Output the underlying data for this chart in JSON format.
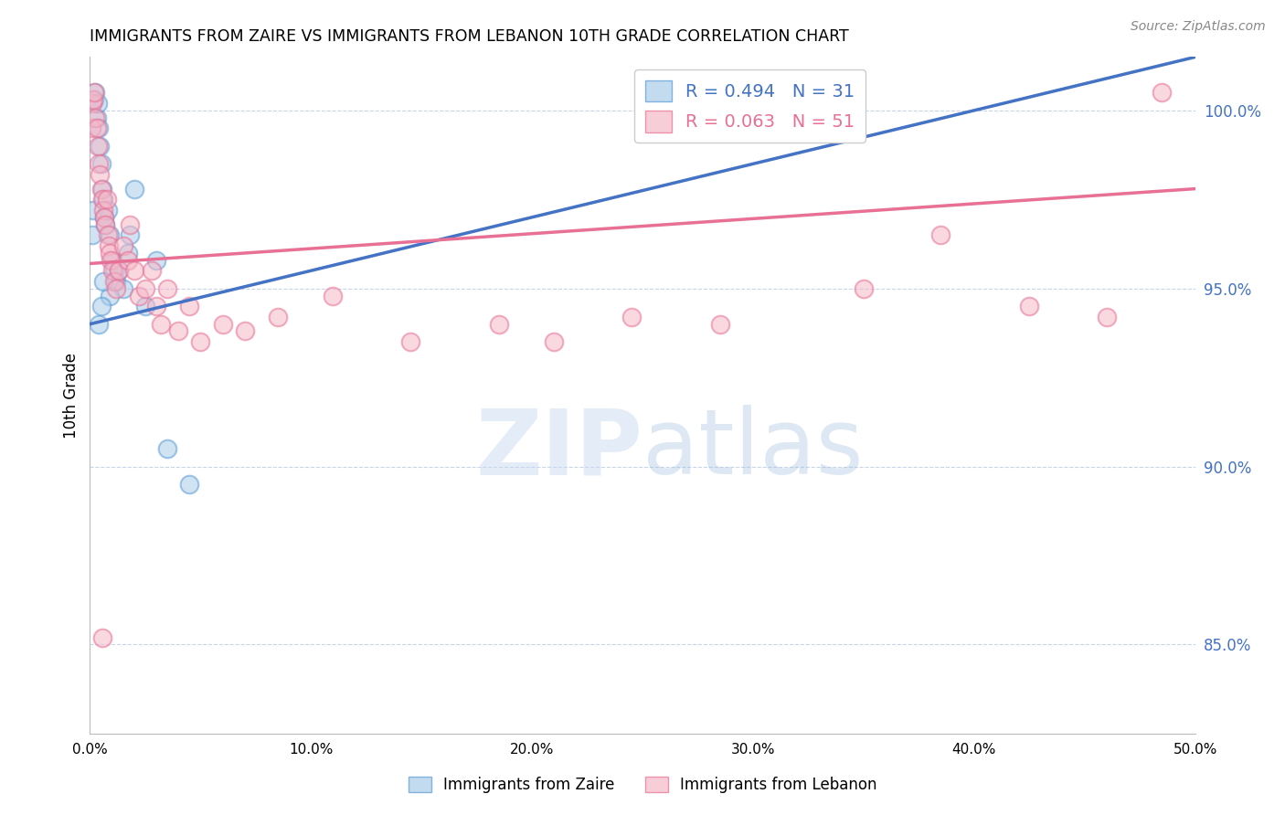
{
  "title": "IMMIGRANTS FROM ZAIRE VS IMMIGRANTS FROM LEBANON 10TH GRADE CORRELATION CHART",
  "source": "Source: ZipAtlas.com",
  "ylabel": "10th Grade",
  "y_ticks": [
    85.0,
    90.0,
    95.0,
    100.0
  ],
  "y_tick_labels": [
    "85.0%",
    "90.0%",
    "95.0%",
    "100.0%"
  ],
  "x_ticks": [
    0.0,
    10.0,
    20.0,
    30.0,
    40.0,
    50.0
  ],
  "x_tick_labels": [
    "0.0%",
    "10.0%",
    "20.0%",
    "30.0%",
    "40.0%",
    "50.0%"
  ],
  "xlim": [
    0.0,
    50.0
  ],
  "ylim": [
    82.5,
    101.5
  ],
  "legend_text_blue": "R = 0.494   N = 31",
  "legend_text_pink": "R = 0.063   N = 51",
  "legend_label_blue": "Immigrants from Zaire",
  "legend_label_pink": "Immigrants from Lebanon",
  "blue_color": "#a8cce8",
  "pink_color": "#f5b8c8",
  "blue_edge_color": "#5b9bd5",
  "pink_edge_color": "#e87095",
  "blue_line_color": "#4472c4",
  "pink_line_color": "#e87095",
  "background_color": "#ffffff",
  "grid_color": "#c8d4e8",
  "title_color": "#000000",
  "ytick_color": "#4472c4",
  "watermark_color": "#dce8f5",
  "blue_trend_x0": 0.0,
  "blue_trend_y0": 94.0,
  "blue_trend_x1": 50.0,
  "blue_trend_y1": 101.5,
  "pink_trend_x0": 0.0,
  "pink_trend_y0": 95.7,
  "pink_trend_x1": 50.0,
  "pink_trend_y1": 97.8,
  "blue_x": [
    0.1,
    0.15,
    0.2,
    0.25,
    0.3,
    0.35,
    0.4,
    0.45,
    0.5,
    0.55,
    0.6,
    0.65,
    0.7,
    0.8,
    0.9,
    1.0,
    1.1,
    1.2,
    1.5,
    1.8,
    2.0,
    2.5,
    3.0,
    1.7,
    0.9,
    1.3,
    0.6,
    0.5,
    0.4,
    3.5,
    4.5
  ],
  "blue_y": [
    96.5,
    97.2,
    100.3,
    100.5,
    99.8,
    100.2,
    99.5,
    99.0,
    98.5,
    97.8,
    97.5,
    97.0,
    96.8,
    97.2,
    96.5,
    95.8,
    95.5,
    95.2,
    95.0,
    96.5,
    97.8,
    94.5,
    95.8,
    96.0,
    94.8,
    95.5,
    95.2,
    94.5,
    94.0,
    90.5,
    89.5
  ],
  "pink_x": [
    0.05,
    0.1,
    0.15,
    0.2,
    0.25,
    0.3,
    0.35,
    0.4,
    0.45,
    0.5,
    0.55,
    0.6,
    0.65,
    0.7,
    0.75,
    0.8,
    0.85,
    0.9,
    0.95,
    1.0,
    1.1,
    1.2,
    1.3,
    1.5,
    1.7,
    2.0,
    2.2,
    2.5,
    2.8,
    3.0,
    3.2,
    3.5,
    4.0,
    4.5,
    5.0,
    6.0,
    7.0,
    8.5,
    11.0,
    14.5,
    18.5,
    21.0,
    24.5,
    28.5,
    35.0,
    38.5,
    42.5,
    46.0,
    48.5,
    1.8,
    0.55
  ],
  "pink_y": [
    99.5,
    100.2,
    100.3,
    100.5,
    99.8,
    99.5,
    99.0,
    98.5,
    98.2,
    97.8,
    97.5,
    97.2,
    97.0,
    96.8,
    97.5,
    96.5,
    96.2,
    96.0,
    95.8,
    95.5,
    95.2,
    95.0,
    95.5,
    96.2,
    95.8,
    95.5,
    94.8,
    95.0,
    95.5,
    94.5,
    94.0,
    95.0,
    93.8,
    94.5,
    93.5,
    94.0,
    93.8,
    94.2,
    94.8,
    93.5,
    94.0,
    93.5,
    94.2,
    94.0,
    95.0,
    96.5,
    94.5,
    94.2,
    100.5,
    96.8,
    85.2
  ]
}
